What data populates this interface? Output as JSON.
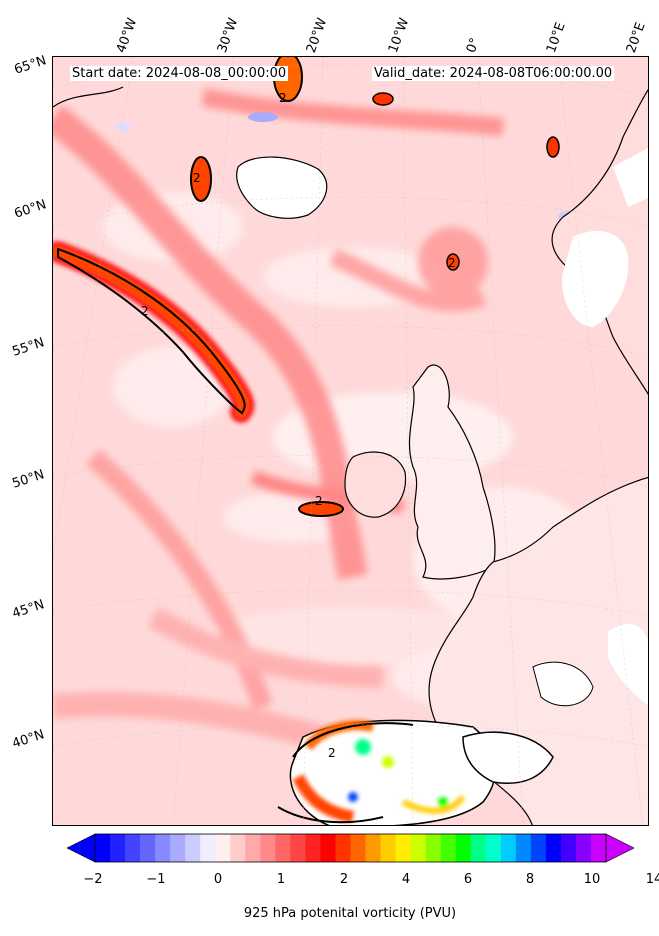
{
  "header": {
    "start": "Start date: 2024-08-08_00:00:00",
    "valid": "Valid_date: 2024-08-08T06:00:00.00"
  },
  "map": {
    "projection": "stereographic",
    "field": "925 hPa potential vorticity",
    "contour_level": "2",
    "lon_labels": [
      "40°W",
      "30°W",
      "20°W",
      "10°W",
      "0°",
      "10°E",
      "20°E"
    ],
    "lat_labels": [
      "65°N",
      "60°N",
      "55°N",
      "50°N",
      "45°N",
      "40°N"
    ]
  },
  "colorbar": {
    "label": "925 hPa potenital vorticity (PVU)",
    "ticks": [
      "−2",
      "−1",
      "0",
      "1",
      "2",
      "4",
      "6",
      "8",
      "10",
      "14"
    ],
    "colors": [
      "#0000ff",
      "#2222ff",
      "#4444ff",
      "#6666ff",
      "#8888ff",
      "#aaaaff",
      "#ccccff",
      "#eeeeff",
      "#ffeeee",
      "#ffcccc",
      "#ffaaaa",
      "#ff8888",
      "#ff6666",
      "#ff4444",
      "#ff2222",
      "#ff0000",
      "#ff3300",
      "#ff6600",
      "#ff9900",
      "#ffcc00",
      "#ffee00",
      "#ccff00",
      "#88ff00",
      "#44ff00",
      "#00ff00",
      "#00ff88",
      "#00ffcc",
      "#00ccff",
      "#0088ff",
      "#0044ff",
      "#0000ff",
      "#4400ff",
      "#8800ff",
      "#cc00ff"
    ],
    "under_color": "#0000ff",
    "over_color": "#cc00ff"
  }
}
